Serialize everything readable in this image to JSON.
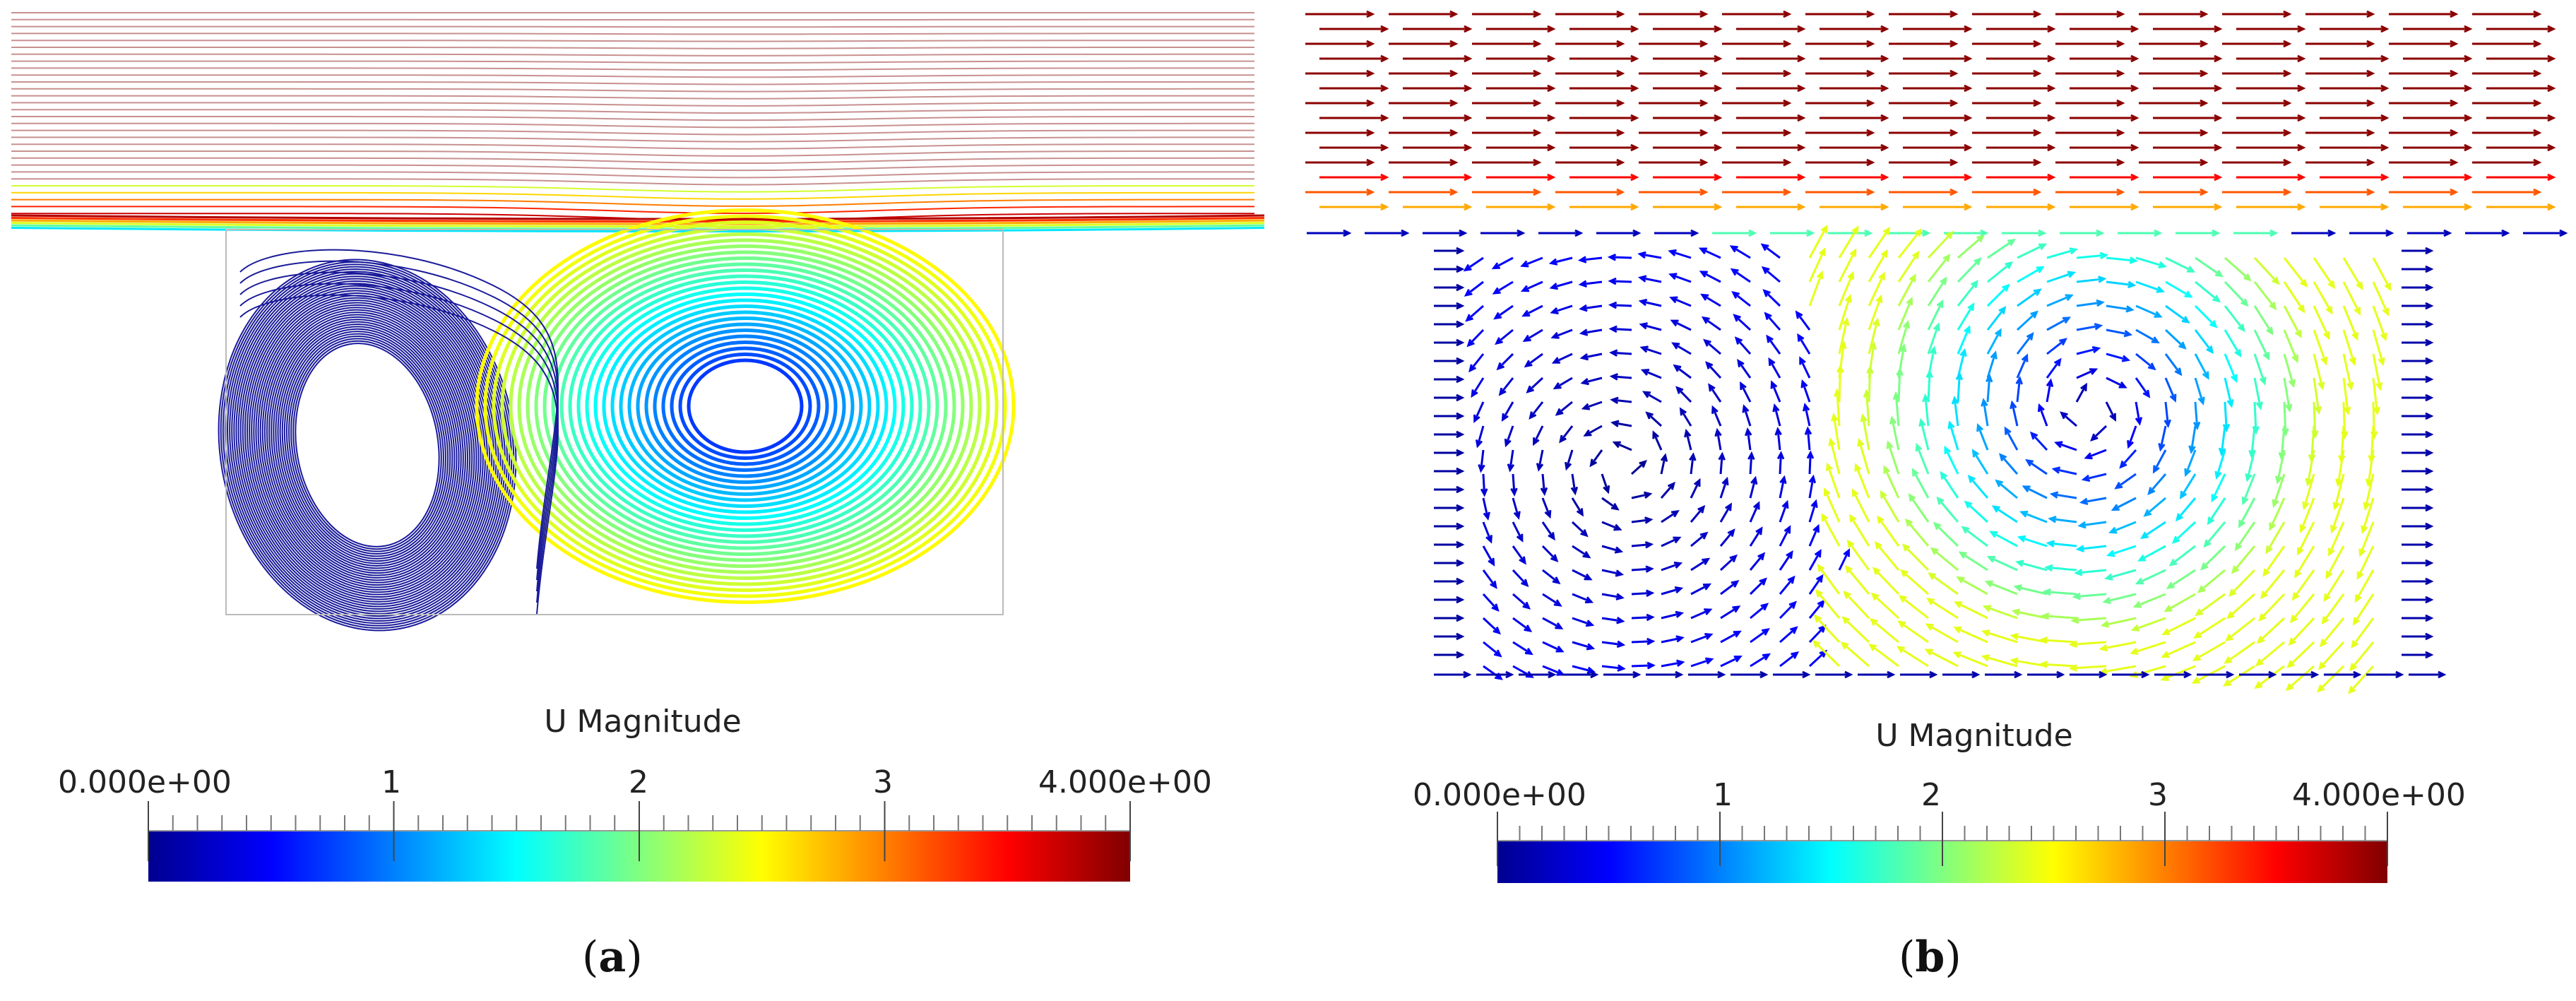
{
  "panels": [
    {
      "id": "a",
      "caption_letter": "a",
      "colorbar": {
        "title": "U Magnitude",
        "tick_labels": [
          "0.000e+00",
          "1",
          "2",
          "3",
          "4.000e+00"
        ],
        "range": [
          0,
          4
        ]
      }
    },
    {
      "id": "b",
      "caption_letter": "b",
      "colorbar": {
        "title": "U Magnitude",
        "tick_labels": [
          "0.000e+00",
          "1",
          "2",
          "3",
          "4.000e+00"
        ],
        "range": [
          0,
          4
        ]
      }
    }
  ],
  "colormap": {
    "name": "jet",
    "stops": [
      "#00008f",
      "#0000ff",
      "#0080ff",
      "#00ffff",
      "#80ff80",
      "#ffff00",
      "#ff8000",
      "#ff0000",
      "#800000"
    ]
  },
  "colors": {
    "streamline_top": "#c89090",
    "vortex_left": "#1a1a9a",
    "domain_outline": "#bbbbbb"
  }
}
